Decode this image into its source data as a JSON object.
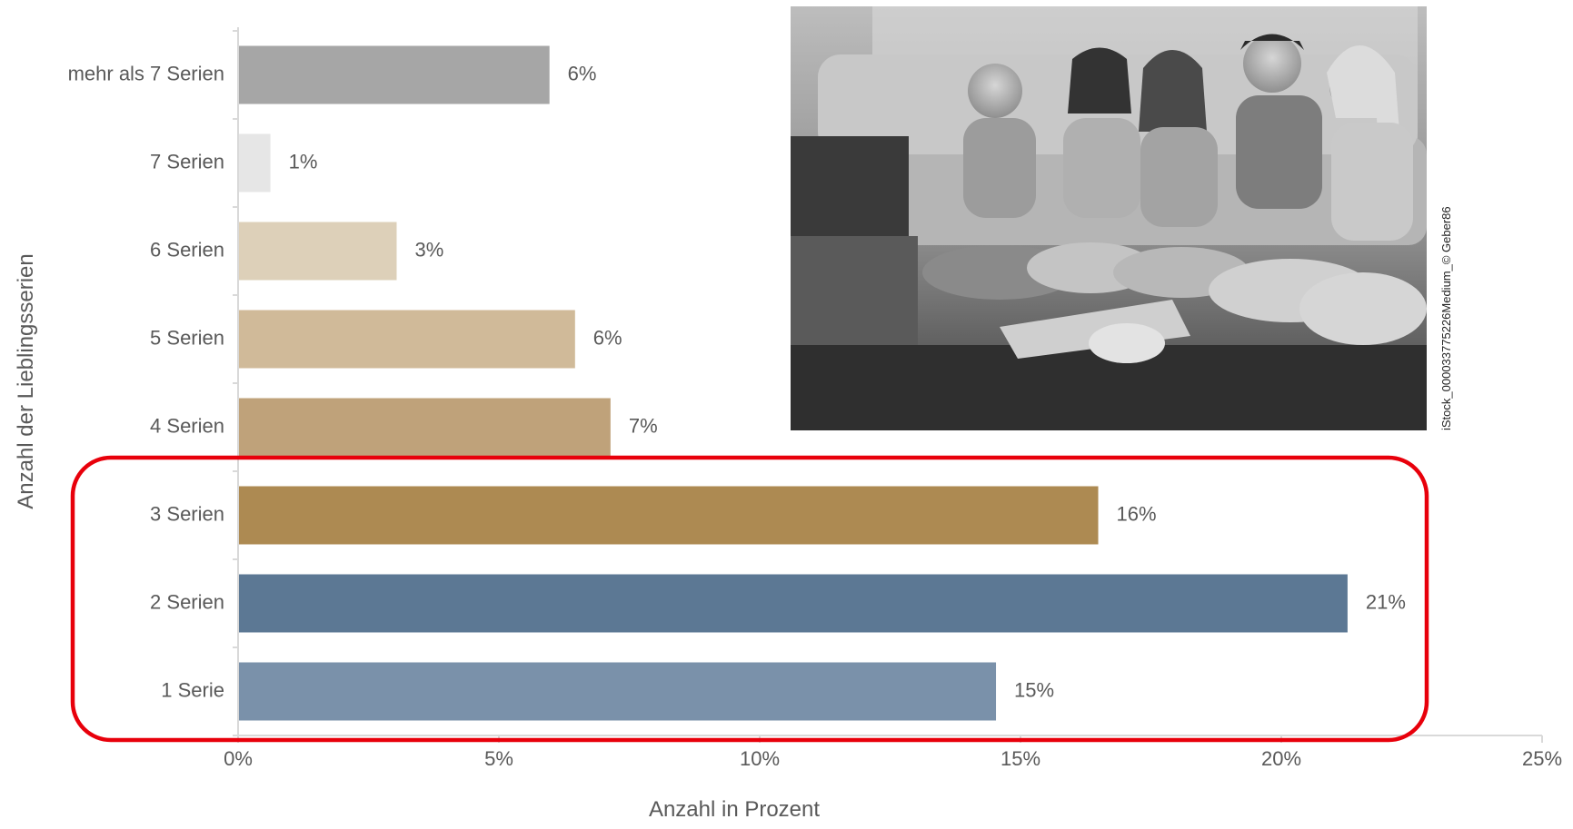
{
  "chart_data": {
    "type": "bar",
    "orientation": "horizontal",
    "categories": [
      "mehr als 7 Serien",
      "7 Serien",
      "6 Serien",
      "5 Serien",
      "4 Serien",
      "3 Serien",
      "2 Serien",
      "1 Serie"
    ],
    "values": [
      5.97,
      0.62,
      3.04,
      6.46,
      7.14,
      16.49,
      21.27,
      14.53
    ],
    "value_labels": [
      "6%",
      "1%",
      "3%",
      "6%",
      "7%",
      "16%",
      "21%",
      "15%"
    ],
    "bar_colors": [
      "#a6a6a6",
      "#e6e6e6",
      "#ddd0b9",
      "#d0ba99",
      "#bfa27a",
      "#ad8a52",
      "#5c7894",
      "#7a91aa"
    ],
    "xlim": [
      0,
      25
    ],
    "x_ticks": [
      0,
      5,
      10,
      15,
      20,
      25
    ],
    "x_tick_labels": [
      "0%",
      "5%",
      "10%",
      "15%",
      "20%",
      "25%"
    ],
    "xlabel": "Anzahl in Prozent",
    "ylabel": "Anzahl der Lieblingsserien",
    "grid": false,
    "highlight": {
      "categories": [
        "3 Serien",
        "2 Serien",
        "1 Serie"
      ],
      "color": "#e8000b"
    }
  },
  "photo": {
    "subject": "group of friends on a sofa eating pizza and watching TV",
    "style": "grayscale",
    "credit": "iStock_000033775226Medium_©   Geber86"
  },
  "colors": {
    "axis": "#d9d9d9",
    "text": "#595959",
    "highlight_box": "#e8000b"
  }
}
